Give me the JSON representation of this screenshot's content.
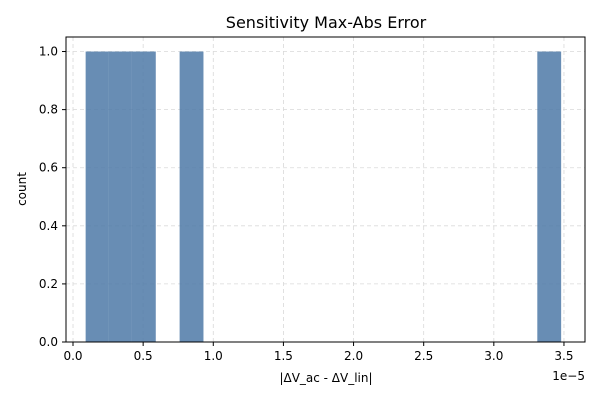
{
  "chart_data": {
    "type": "bar",
    "title": "Sensitivity Max-Abs Error",
    "xlabel": "|ΔV_ac - ΔV_lin|",
    "ylabel": "count",
    "x_scale_note": "1e−5",
    "xlim": [
      -0.05,
      3.65
    ],
    "ylim": [
      0,
      1.05
    ],
    "x_ticks": [
      0.0,
      0.5,
      1.0,
      1.5,
      2.0,
      2.5,
      3.0,
      3.5
    ],
    "x_tick_labels": [
      "0.0",
      "0.5",
      "1.0",
      "1.5",
      "2.0",
      "2.5",
      "3.0",
      "3.5"
    ],
    "y_ticks": [
      0.0,
      0.2,
      0.4,
      0.6,
      0.8,
      1.0
    ],
    "y_tick_labels": [
      "0.0",
      "0.2",
      "0.4",
      "0.6",
      "0.8",
      "1.0"
    ],
    "grid": true,
    "bar_color": "#4e79a7",
    "bins": [
      {
        "x0": 0.09,
        "x1": 0.25,
        "count": 1
      },
      {
        "x0": 0.25,
        "x1": 0.42,
        "count": 1
      },
      {
        "x0": 0.42,
        "x1": 0.59,
        "count": 1
      },
      {
        "x0": 0.76,
        "x1": 0.93,
        "count": 1
      },
      {
        "x0": 3.31,
        "x1": 3.48,
        "count": 1
      }
    ]
  }
}
